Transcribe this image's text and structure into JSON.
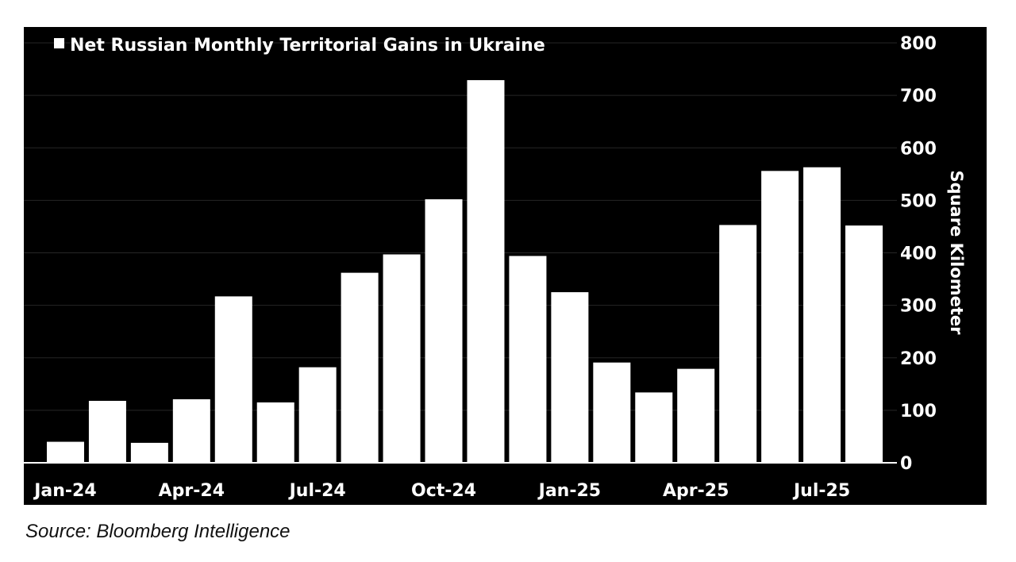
{
  "chart_data": {
    "type": "bar",
    "title": "",
    "legend": {
      "entries": [
        "Net Russian Monthly Territorial Gains in Ukraine"
      ],
      "placement": "top-left"
    },
    "series": [
      {
        "name": "Net Russian Monthly Territorial Gains in Ukraine",
        "color": "#ffffff",
        "values": [
          40,
          118,
          38,
          121,
          317,
          115,
          182,
          362,
          397,
          502,
          729,
          394,
          325,
          191,
          134,
          179,
          453,
          556,
          563,
          452
        ]
      }
    ],
    "categories": [
      "Jan-24",
      "Feb-24",
      "Mar-24",
      "Apr-24",
      "May-24",
      "Jun-24",
      "Jul-24",
      "Aug-24",
      "Sep-24",
      "Oct-24",
      "Nov-24",
      "Dec-24",
      "Jan-25",
      "Feb-25",
      "Mar-25",
      "Apr-25",
      "May-25",
      "Jun-25",
      "Jul-25",
      "Aug-25"
    ],
    "x_tick_labels": [
      "Jan-24",
      "Apr-24",
      "Jul-24",
      "Oct-24",
      "Jan-25",
      "Apr-25",
      "Jul-25"
    ],
    "x_tick_positions": [
      0,
      3,
      6,
      9,
      12,
      15,
      18
    ],
    "xlabel": "",
    "ylabel": "Square Kilometer",
    "y_tick_labels": [
      "0",
      "100",
      "200",
      "300",
      "400",
      "500",
      "600",
      "700",
      "800"
    ],
    "ylim": [
      0,
      800
    ],
    "y_axis_side": "right",
    "grid": true,
    "background": "#000000"
  },
  "source": "Source: Bloomberg Intelligence"
}
